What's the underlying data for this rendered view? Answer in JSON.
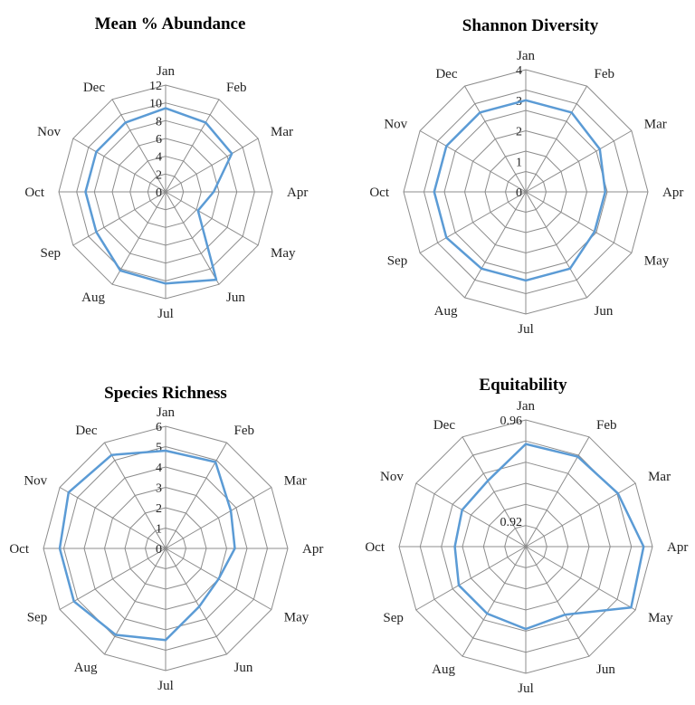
{
  "chart_data": [
    {
      "type": "radar",
      "title": "Mean % Abundance",
      "categories": [
        "Jan",
        "Feb",
        "Mar",
        "Apr",
        "May",
        "Jun",
        "Jul",
        "Aug",
        "Sep",
        "Oct",
        "Nov",
        "Dec"
      ],
      "rlim": [
        0,
        12
      ],
      "tick_labels": [
        "0",
        "2",
        "4",
        "6",
        "8",
        "10",
        "12"
      ],
      "grid": true,
      "series_color": "#5b9bd5",
      "series": [
        {
          "values": [
            9.4,
            9.0,
            8.6,
            5.4,
            4.2,
            11.4,
            10.3,
            10.2,
            9.0,
            9.0,
            9.0,
            9.0
          ]
        }
      ]
    },
    {
      "type": "radar",
      "title": "Shannon  Diversity",
      "categories": [
        "Jan",
        "Feb",
        "Mar",
        "Apr",
        "May",
        "Jun",
        "Jul",
        "Aug",
        "Sep",
        "Oct",
        "Nov",
        "Dec"
      ],
      "rlim": [
        0,
        4
      ],
      "tick_labels": [
        "0",
        "1",
        "2",
        "3",
        "4"
      ],
      "grid": true,
      "series_color": "#5b9bd5",
      "series": [
        {
          "values": [
            3.0,
            3.0,
            2.8,
            2.6,
            2.6,
            2.9,
            2.9,
            2.9,
            3.0,
            3.0,
            3.0,
            3.0
          ]
        }
      ]
    },
    {
      "type": "radar",
      "title": "Species Richness",
      "categories": [
        "Jan",
        "Feb",
        "Mar",
        "Apr",
        "May",
        "Jun",
        "Jul",
        "Aug",
        "Sep",
        "Oct",
        "Nov",
        "Dec"
      ],
      "rlim": [
        0,
        6
      ],
      "tick_labels": [
        "0",
        "1",
        "2",
        "3",
        "4",
        "5",
        "6"
      ],
      "grid": true,
      "series_color": "#5b9bd5",
      "series": [
        {
          "values": [
            4.8,
            4.9,
            3.7,
            3.4,
            3.0,
            3.3,
            4.5,
            4.9,
            5.2,
            5.2,
            5.5,
            5.3
          ]
        }
      ]
    },
    {
      "type": "radar",
      "title": "Equitability",
      "categories": [
        "Jan",
        "Feb",
        "Mar",
        "Apr",
        "May",
        "Jun",
        "Jul",
        "Aug",
        "Sep",
        "Oct",
        "Nov",
        "Dec"
      ],
      "rlim": [
        0.91,
        0.96
      ],
      "tick_labels": [
        "0.92",
        "0.96"
      ],
      "tick_values": [
        0.92,
        0.96
      ],
      "grid": true,
      "series_color": "#5b9bd5",
      "series": [
        {
          "values": [
            0.9505,
            0.951,
            0.952,
            0.9565,
            0.958,
            0.941,
            0.9425,
            0.9405,
            0.9405,
            0.938,
            0.939,
            0.94
          ]
        }
      ]
    }
  ]
}
